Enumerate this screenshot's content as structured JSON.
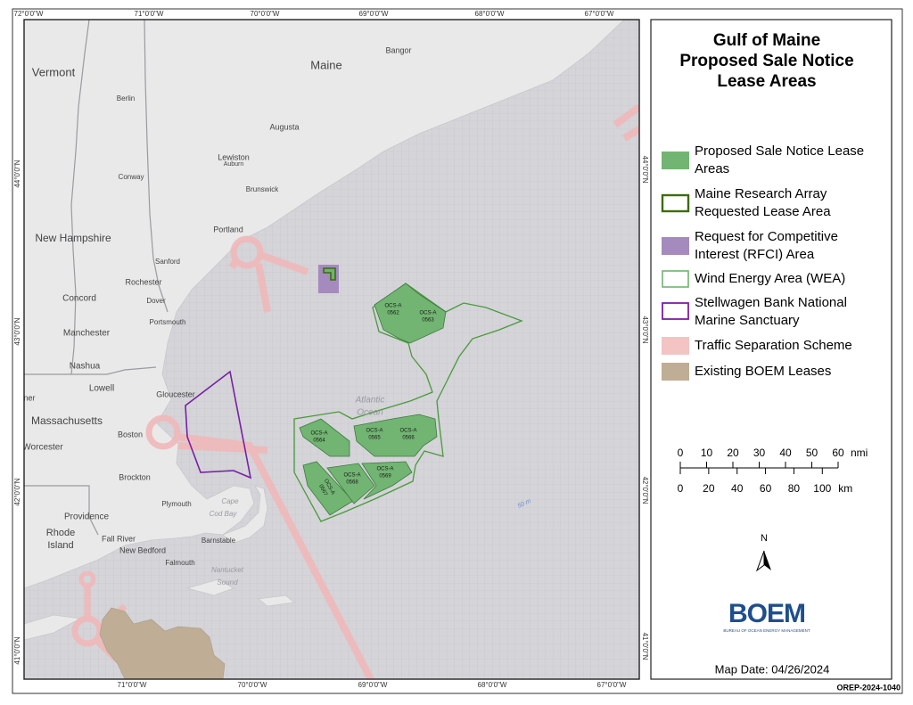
{
  "map": {
    "top_longitudes": [
      "72°0'0\"W",
      "71°0'0\"W",
      "70°0'0\"W",
      "69°0'0\"W",
      "68°0'0\"W",
      "67°0'0\"W"
    ],
    "bottom_longitudes": [
      "71°0'0\"W",
      "70°0'0\"W",
      "69°0'0\"W",
      "68°0'0\"W",
      "67°0'0\"W"
    ],
    "left_latitudes": [
      "44°0'0\"N",
      "43°0'0\"N",
      "42°0'0\"N",
      "41°0'0\"N"
    ],
    "right_latitudes": [
      "44°0'0\"N",
      "43°0'0\"N",
      "42°0'0\"N",
      "41°0'0\"N"
    ],
    "places": [
      "Vermont",
      "Maine",
      "Bangor",
      "Berlin",
      "Augusta",
      "Lewiston",
      "Auburn",
      "Conway",
      "Brunswick",
      "New Hampshire",
      "Portland",
      "Sanford",
      "Rochester",
      "Dover",
      "Concord",
      "Portsmouth",
      "Manchester",
      "Nashua",
      "Lowell",
      "ner",
      "Gloucester",
      "Massachusetts",
      "Boston",
      "Worcester",
      "Brockton",
      "Plymouth",
      "Providence",
      "Rhode",
      "Island",
      "Fall River",
      "New Bedford",
      "Barnstable",
      "Falmouth"
    ],
    "water_labels": [
      "Cape",
      "Cod Bay",
      "Nantucket",
      "Sound",
      "Atlantic",
      "Ocean",
      "50 m"
    ],
    "lease_blocks": [
      {
        "prefix": "OCS-A",
        "number": "0562"
      },
      {
        "prefix": "OCS-A",
        "number": "0563"
      },
      {
        "prefix": "OCS-A",
        "number": "0564"
      },
      {
        "prefix": "OCS-A",
        "number": "0565"
      },
      {
        "prefix": "OCS-A",
        "number": "0566"
      },
      {
        "prefix": "OCS-A",
        "number": "0567"
      },
      {
        "prefix": "OCS-A",
        "number": "0568"
      },
      {
        "prefix": "OCS-A",
        "number": "0569"
      }
    ]
  },
  "legend": {
    "title": [
      "Gulf of Maine",
      "Proposed Sale Notice",
      "Lease Areas"
    ],
    "items": [
      [
        "Proposed Sale Notice Lease",
        "Areas"
      ],
      [
        "Maine Research Array",
        "Requested Lease Area"
      ],
      [
        "Request for Competitive",
        "Interest (RFCI) Area"
      ],
      [
        "Wind Energy Area (WEA)"
      ],
      [
        "Stellwagen Bank National",
        "Marine Sanctuary"
      ],
      [
        "Traffic Separation Scheme"
      ],
      [
        "Existing BOEM Leases"
      ]
    ],
    "scale": {
      "nmi_ticks": [
        0,
        10,
        20,
        30,
        40,
        50,
        60
      ],
      "nmi_unit": "nmi",
      "km_ticks": [
        0,
        20,
        40,
        60,
        80,
        100
      ],
      "km_unit": "km"
    },
    "north": "N",
    "logo": {
      "name": "BOEM",
      "subtitle": "BUREAU OF OCEAN ENERGY MANAGEMENT"
    },
    "map_date": "Map Date: 04/26/2024"
  },
  "footer": {
    "id": "OREP-2024-1040"
  }
}
